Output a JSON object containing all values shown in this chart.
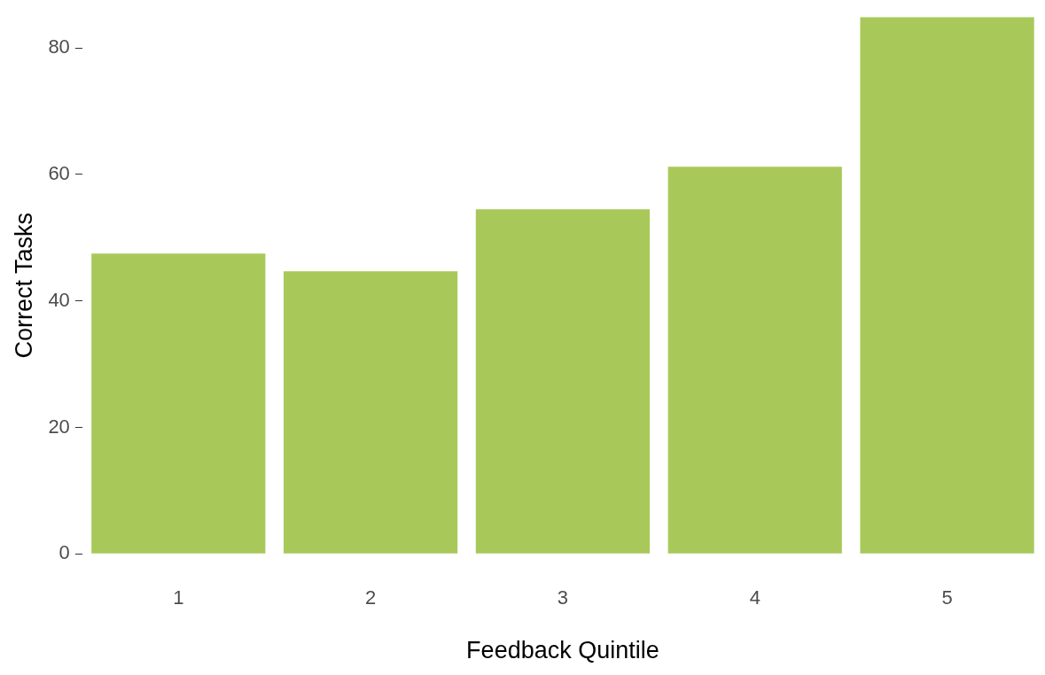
{
  "chart_data": {
    "type": "bar",
    "xlabel": "Feedback Quintile",
    "ylabel": "Correct Tasks",
    "categories": [
      "1",
      "2",
      "3",
      "4",
      "5"
    ],
    "values": [
      47.5,
      44.7,
      54.5,
      61.2,
      84.9
    ],
    "color": "#a8c95a",
    "ylim": [
      0,
      84.9
    ],
    "yticks": [
      0,
      20,
      40,
      60,
      80
    ],
    "grid": false,
    "legend": false
  }
}
